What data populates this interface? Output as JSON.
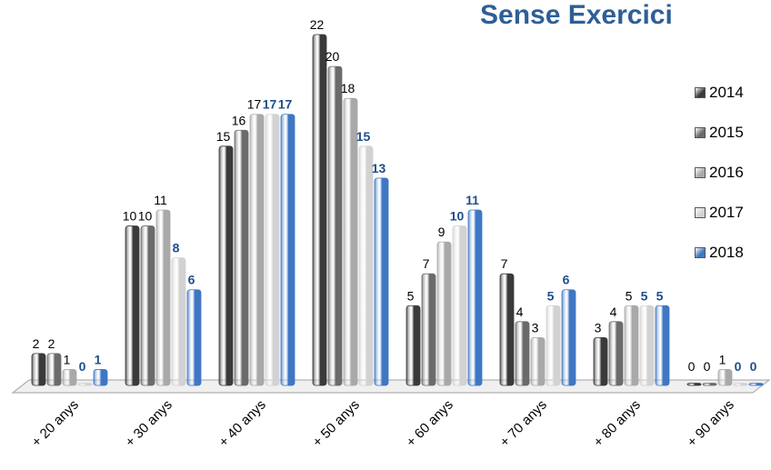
{
  "chart_data": {
    "type": "bar",
    "title": "Sense Exercici",
    "categories": [
      "+ 20 anys",
      "+ 30 anys",
      "+ 40 anys",
      "+ 50 anys",
      "+ 60 anys",
      "+ 70 anys",
      "+ 80 anys",
      "+ 90 anys"
    ],
    "series": [
      {
        "name": "2014",
        "values": [
          2,
          10,
          15,
          22,
          5,
          7,
          3,
          0
        ]
      },
      {
        "name": "2015",
        "values": [
          2,
          10,
          16,
          20,
          7,
          4,
          4,
          0
        ]
      },
      {
        "name": "2016",
        "values": [
          1,
          11,
          17,
          18,
          9,
          3,
          5,
          1
        ]
      },
      {
        "name": "2017",
        "values": [
          0,
          8,
          17,
          15,
          10,
          5,
          5,
          0
        ]
      },
      {
        "name": "2018",
        "values": [
          1,
          6,
          17,
          13,
          11,
          6,
          5,
          0
        ]
      }
    ],
    "colors": [
      "#3a3a3a",
      "#6b6b6b",
      "#a9a9a9",
      "#d2d2d2",
      "#3f77c4"
    ],
    "label_colors": [
      "#000000",
      "#000000",
      "#000000",
      "#1f4e8c",
      "#1f4e8c"
    ],
    "ylim": [
      0,
      22
    ],
    "grid": false,
    "legend": "right"
  }
}
